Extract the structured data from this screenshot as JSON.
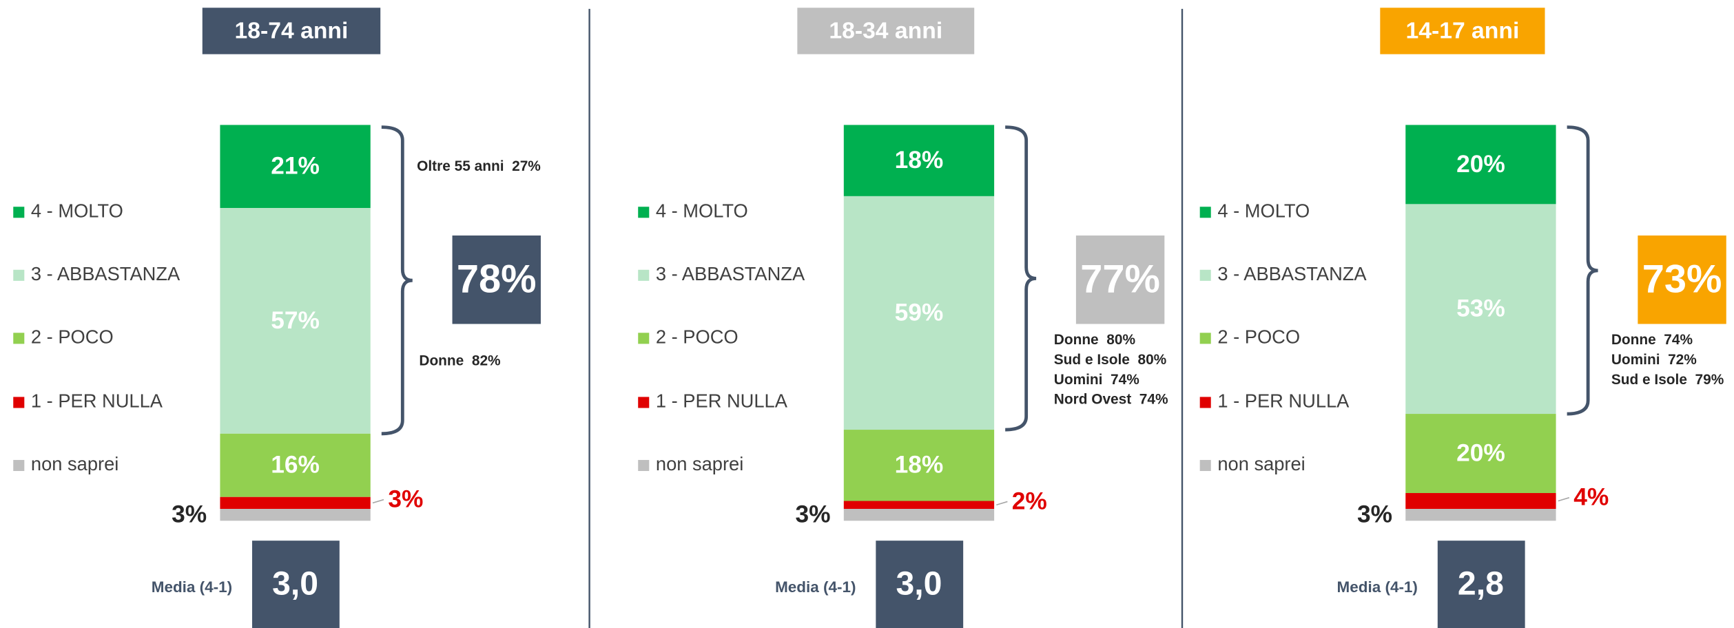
{
  "chart_data": [
    {
      "type": "stacked_bar",
      "title": "18-74 anni",
      "title_color": "#44546a",
      "series": [
        {
          "name": "4 - MOLTO",
          "color": "#00b050",
          "values": [
            21
          ],
          "value_labels": [
            "21%"
          ]
        },
        {
          "name": "3 - ABBASTANZA",
          "color": "#b8e5c6",
          "values": [
            57
          ],
          "value_labels": [
            "57%"
          ]
        },
        {
          "name": "2 - POCO",
          "color": "#92d050",
          "values": [
            16
          ],
          "value_labels": [
            "16%"
          ]
        },
        {
          "name": "1 - PER NULLA",
          "color": "#e00000",
          "values": [
            3
          ],
          "value_labels": [
            "3%"
          ]
        },
        {
          "name": "non saprei",
          "color": "#bfbfbf",
          "values": [
            3
          ],
          "value_labels": [
            "3%"
          ]
        }
      ],
      "ylim": [
        0,
        100
      ],
      "total": {
        "value": 78,
        "label": "78%"
      },
      "total_color": "#44546a",
      "annotations": [
        "Oltre 55 anni  27%",
        "Donne  82%"
      ],
      "mean_label": "Media (4-1)",
      "mean": {
        "value": 3.0,
        "label": "3,0"
      }
    },
    {
      "type": "stacked_bar",
      "title": "18-34 anni",
      "title_color": "#bfbfbf",
      "series": [
        {
          "name": "4 - MOLTO",
          "color": "#00b050",
          "values": [
            18
          ],
          "value_labels": [
            "18%"
          ]
        },
        {
          "name": "3 - ABBASTANZA",
          "color": "#b8e5c6",
          "values": [
            59
          ],
          "value_labels": [
            "59%"
          ]
        },
        {
          "name": "2 - POCO",
          "color": "#92d050",
          "values": [
            18
          ],
          "value_labels": [
            "18%"
          ]
        },
        {
          "name": "1 - PER NULLA",
          "color": "#e00000",
          "values": [
            2
          ],
          "value_labels": [
            "2%"
          ]
        },
        {
          "name": "non saprei",
          "color": "#bfbfbf",
          "values": [
            3
          ],
          "value_labels": [
            "3%"
          ]
        }
      ],
      "ylim": [
        0,
        100
      ],
      "total": {
        "value": 77,
        "label": "77%"
      },
      "total_color": "#bfbfbf",
      "annotations": [
        "Donne  80%",
        "Sud e Isole  80%",
        "Uomini  74%",
        "Nord Ovest  74%"
      ],
      "mean_label": "Media (4-1)",
      "mean": {
        "value": 3.0,
        "label": "3,0"
      }
    },
    {
      "type": "stacked_bar",
      "title": "14-17 anni",
      "title_color": "#f9a400",
      "series": [
        {
          "name": "4 - MOLTO",
          "color": "#00b050",
          "values": [
            20
          ],
          "value_labels": [
            "20%"
          ]
        },
        {
          "name": "3 - ABBASTANZA",
          "color": "#b8e5c6",
          "values": [
            53
          ],
          "value_labels": [
            "53%"
          ]
        },
        {
          "name": "2 - POCO",
          "color": "#92d050",
          "values": [
            20
          ],
          "value_labels": [
            "20%"
          ]
        },
        {
          "name": "1 - PER NULLA",
          "color": "#e00000",
          "values": [
            4
          ],
          "value_labels": [
            "4%"
          ]
        },
        {
          "name": "non saprei",
          "color": "#bfbfbf",
          "values": [
            3
          ],
          "value_labels": [
            "3%"
          ]
        }
      ],
      "ylim": [
        0,
        100
      ],
      "total": {
        "value": 73,
        "label": "73%"
      },
      "total_color": "#f9a400",
      "annotations": [
        "Donne  74%",
        "Uomini  72%",
        "Sud e Isole  79%"
      ],
      "mean_label": "Media (4-1)",
      "mean": {
        "value": 2.8,
        "label": "2,8"
      }
    }
  ]
}
